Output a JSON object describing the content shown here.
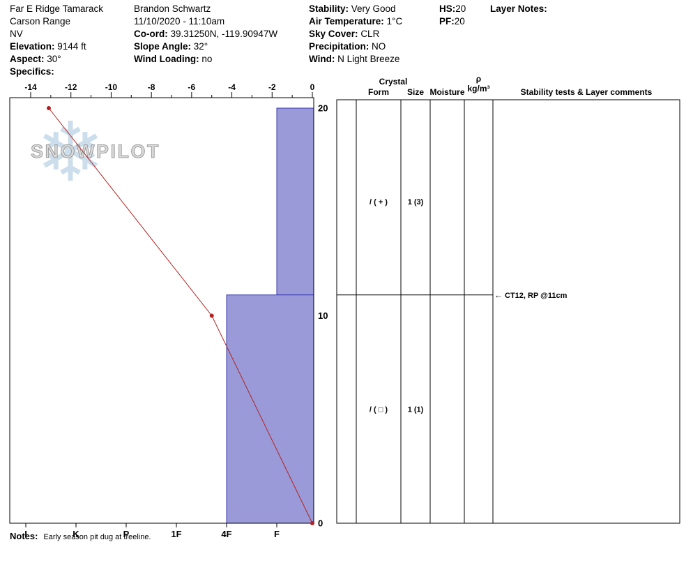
{
  "header": {
    "col1": {
      "title": "Far E Ridge Tamarack",
      "range": "Carson Range",
      "state": "NV",
      "elevation_label": "Elevation:",
      "elevation_value": "9144 ft",
      "aspect_label": "Aspect:",
      "aspect_value": "30°",
      "specifics_label": "Specifics:"
    },
    "col2": {
      "observer": "Brandon Schwartz",
      "datetime": "11/10/2020 - 11:10am",
      "coord_label": "Co-ord:",
      "coord_value": "39.31250N, -119.90947W",
      "slope_angle_label": "Slope Angle:",
      "slope_angle_value": "32°",
      "wind_loading_label": "Wind Loading:",
      "wind_loading_value": "no"
    },
    "col3": {
      "stability_label": "Stability:",
      "stability_value": "Very Good",
      "air_temp_label": "Air Temperature:",
      "air_temp_value": "1°C",
      "sky_cover_label": "Sky Cover:",
      "sky_cover_value": "CLR",
      "precipitation_label": "Precipitation:",
      "precipitation_value": "NO",
      "wind_label": "Wind:",
      "wind_value": "N Light Breeze"
    },
    "col4": {
      "hs_label": "HS:",
      "hs_value": "20",
      "pf_label": "PF:",
      "pf_value": "20"
    },
    "col5": {
      "layer_notes_label": "Layer Notes:"
    }
  },
  "watermark": {
    "text": "SNOWPILOT",
    "snowflake": "❄"
  },
  "notes": {
    "label": "Notes:",
    "text": "Early season pit dug at treeline."
  },
  "chart_data": {
    "type": "snow-pit-profile",
    "temperature_axis": {
      "min": -14,
      "max": 0,
      "major_ticks": [
        -14,
        -12,
        -10,
        -8,
        -6,
        -4,
        -2,
        0
      ],
      "unit": "°C"
    },
    "depth_axis": {
      "min": 0,
      "max": 20,
      "labels": [
        0,
        10,
        20
      ],
      "unit": "cm"
    },
    "hardness_axis": {
      "categories": [
        "I",
        "K",
        "P",
        "1F",
        "4F",
        "F"
      ]
    },
    "temperature_profile": [
      {
        "height_cm": 20,
        "temp_c": -13.1
      },
      {
        "height_cm": 10,
        "temp_c": -5
      },
      {
        "height_cm": 0,
        "temp_c": 0
      }
    ],
    "layers": [
      {
        "top_cm": 20,
        "bottom_cm": 11,
        "hardness": "F",
        "form": "/ ( + )",
        "size": "1 (3)"
      },
      {
        "top_cm": 11,
        "bottom_cm": 0,
        "hardness": "4F",
        "form": "/ ( □ )",
        "size": "1 (1)"
      }
    ],
    "stability_tests": [
      {
        "height_cm": 11,
        "label": "CT12, RP @11cm"
      }
    ],
    "table": {
      "crystal_header": "Crystal",
      "form_header": "Form",
      "size_header": "Size",
      "moisture_header": "Moisture",
      "density_symbol": "ρ",
      "density_unit": "kg/m³",
      "tests_header": "Stability tests & Layer comments"
    },
    "colors": {
      "bar_fill": "#9a9ad8",
      "bar_stroke": "#3939ae",
      "temp_line": "#b22222",
      "grid": "#000000",
      "watermark_text": "#d8d8d8",
      "watermark_stroke": "#8f8f8f",
      "watermark_flake": "#c7dbe9"
    }
  }
}
